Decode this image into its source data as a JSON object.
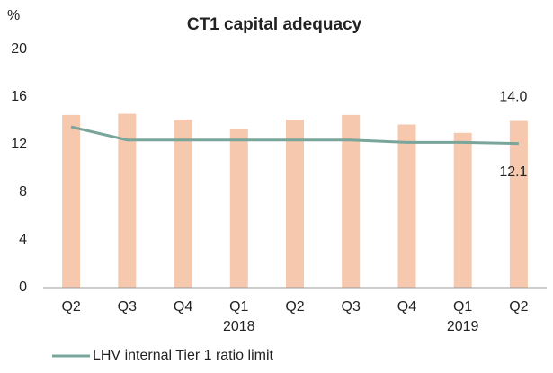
{
  "chart_data": {
    "type": "bar",
    "title": "CT1 capital adequacy",
    "y_unit": "%",
    "categories": [
      "Q2",
      "Q3",
      "Q4",
      "Q1",
      "Q2",
      "Q3",
      "Q4",
      "Q1",
      "Q2"
    ],
    "years": [
      null,
      null,
      null,
      "2018",
      null,
      null,
      null,
      "2019",
      null
    ],
    "series": [
      {
        "type": "bar",
        "color": "#f6c9ae",
        "values": [
          14.5,
          14.6,
          14.1,
          13.3,
          14.1,
          14.5,
          13.7,
          13.0,
          14.0
        ],
        "value_labels": [
          null,
          null,
          null,
          null,
          null,
          null,
          null,
          null,
          "14.0"
        ]
      },
      {
        "type": "line",
        "name": "LHV internal Tier 1 ratio limit",
        "color": "#7aa59a",
        "values": [
          13.5,
          12.4,
          12.4,
          12.4,
          12.4,
          12.4,
          12.2,
          12.2,
          12.1
        ],
        "value_labels": [
          null,
          null,
          null,
          null,
          null,
          null,
          null,
          null,
          "12.1"
        ]
      }
    ],
    "ylim": [
      0,
      20
    ],
    "yticks": [
      0,
      4,
      8,
      12,
      16,
      20
    ],
    "grid": false,
    "legend": "bottom"
  }
}
